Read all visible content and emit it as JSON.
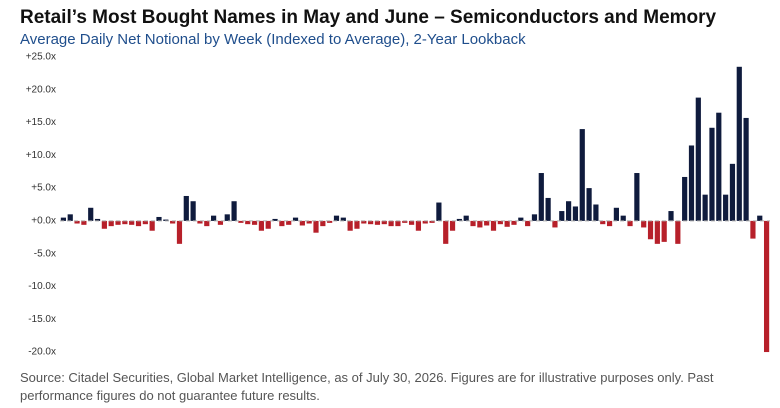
{
  "chart_data": {
    "type": "bar",
    "title": "Retail’s Most Bought Names in May and June – Semiconductors and Memory",
    "subtitle": "Average Daily Net Notional by Week (Indexed to Average), 2-Year Lookback",
    "values": [
      0.5,
      1.0,
      -0.4,
      -0.6,
      2.0,
      0.3,
      -1.2,
      -0.8,
      -0.6,
      -0.5,
      -0.6,
      -0.8,
      -0.5,
      -1.5,
      0.6,
      0.2,
      -0.4,
      -3.5,
      3.8,
      3.0,
      -0.4,
      -0.8,
      0.8,
      -0.6,
      1.0,
      3.0,
      -0.3,
      -0.5,
      -0.6,
      -1.5,
      -1.2,
      0.3,
      -0.8,
      -0.6,
      0.5,
      -0.7,
      -0.4,
      -1.8,
      -0.8,
      -0.3,
      0.8,
      0.5,
      -1.5,
      -1.2,
      -0.4,
      -0.5,
      -0.6,
      -0.5,
      -0.8,
      -0.8,
      -0.3,
      -0.6,
      -1.5,
      -0.4,
      -0.3,
      2.8,
      -3.5,
      -1.5,
      0.3,
      0.8,
      -0.8,
      -1.0,
      -0.7,
      -1.5,
      -0.5,
      -0.9,
      -0.6,
      0.5,
      -0.8,
      1.0,
      7.3,
      3.5,
      -1.0,
      1.5,
      3.0,
      2.2,
      14.0,
      5.0,
      2.5,
      -0.5,
      -0.8,
      2.0,
      0.8,
      -0.8,
      7.3,
      -1.0,
      -2.8,
      -3.5,
      -3.2,
      1.5,
      -3.5,
      6.7,
      11.5,
      18.8,
      4.0,
      14.2,
      16.5,
      4.0,
      8.7,
      23.5,
      15.7,
      -2.7,
      0.8,
      -20.0
    ],
    "positive_color": "#0f1b3d",
    "negative_color": "#b7202a",
    "ylim": [
      -21,
      26
    ],
    "yticks": [
      {
        "value": 25,
        "label": "+25.0x"
      },
      {
        "value": 20,
        "label": "+20.0x"
      },
      {
        "value": 15,
        "label": "+15.0x"
      },
      {
        "value": 10,
        "label": "+10.0x"
      },
      {
        "value": 5,
        "label": "+5.0x"
      },
      {
        "value": 0,
        "label": "+0.0x"
      },
      {
        "value": -5,
        "label": "-5.0x"
      },
      {
        "value": -10,
        "label": "-10.0x"
      },
      {
        "value": -15,
        "label": "-15.0x"
      },
      {
        "value": -20,
        "label": "-20.0x"
      }
    ],
    "zero_line": "dashed",
    "source": "Source: Citadel Securities, Global Market Intelligence, as of July 30, 2026. Figures are for illustrative purposes only. Past performance figures do not guarantee future results."
  }
}
